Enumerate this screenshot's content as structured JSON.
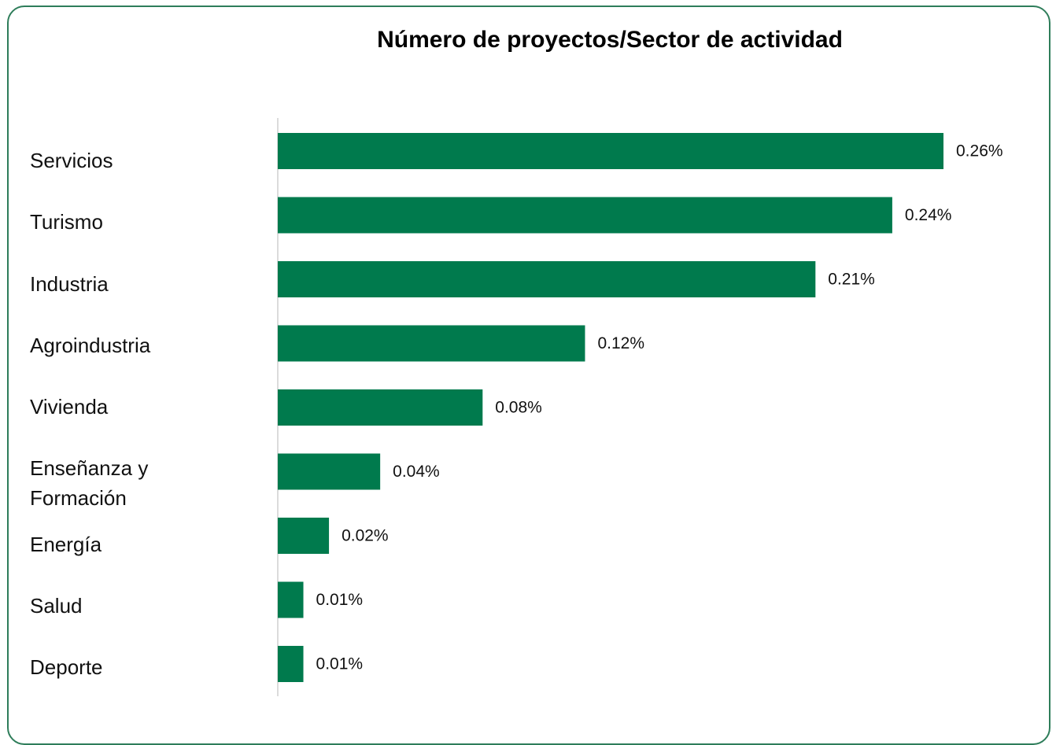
{
  "chart_data": {
    "type": "bar",
    "orientation": "horizontal",
    "title": "Número de proyectos/Sector de actividad",
    "categories": [
      "Servicios",
      "Turismo",
      "Industria",
      "Agroindustria",
      "Vivienda",
      "Enseñanza y Formación",
      "Energía",
      "Salud",
      "Deporte"
    ],
    "values": [
      0.26,
      0.24,
      0.21,
      0.12,
      0.08,
      0.04,
      0.02,
      0.01,
      0.01
    ],
    "value_labels": [
      "0.26%",
      "0.24%",
      "0.21%",
      "0.12%",
      "0.08%",
      "0.04%",
      "0.02%",
      "0.01%",
      "0.01%"
    ],
    "color": "#007a4d"
  }
}
